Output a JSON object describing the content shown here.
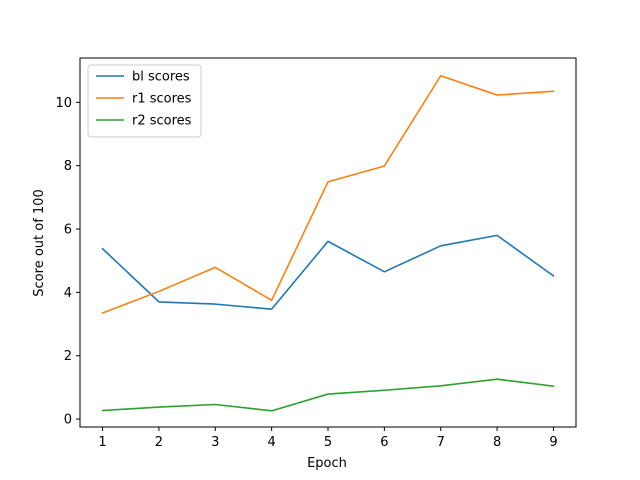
{
  "chart_data": {
    "type": "line",
    "title": "",
    "xlabel": "Epoch",
    "ylabel": "Score out of 100",
    "x": [
      1,
      2,
      3,
      4,
      5,
      6,
      7,
      8,
      9
    ],
    "xticks": [
      1,
      2,
      3,
      4,
      5,
      6,
      7,
      8,
      9
    ],
    "yticks": [
      0,
      2,
      4,
      6,
      8,
      10
    ],
    "xlim": [
      0.6,
      9.4
    ],
    "ylim": [
      -0.25,
      11.4
    ],
    "grid": false,
    "legend_position": "upper-left",
    "series": [
      {
        "name": "bl scores",
        "color": "#1f77b4",
        "values": [
          5.38,
          3.7,
          3.63,
          3.47,
          5.61,
          4.65,
          5.47,
          5.8,
          4.52
        ]
      },
      {
        "name": "r1 scores",
        "color": "#ff7f0e",
        "values": [
          3.35,
          4.03,
          4.79,
          3.75,
          7.49,
          7.99,
          10.84,
          10.23,
          10.35
        ]
      },
      {
        "name": "r2 scores",
        "color": "#2ca02c",
        "values": [
          0.27,
          0.38,
          0.46,
          0.26,
          0.79,
          0.91,
          1.05,
          1.26,
          1.04
        ]
      }
    ]
  }
}
